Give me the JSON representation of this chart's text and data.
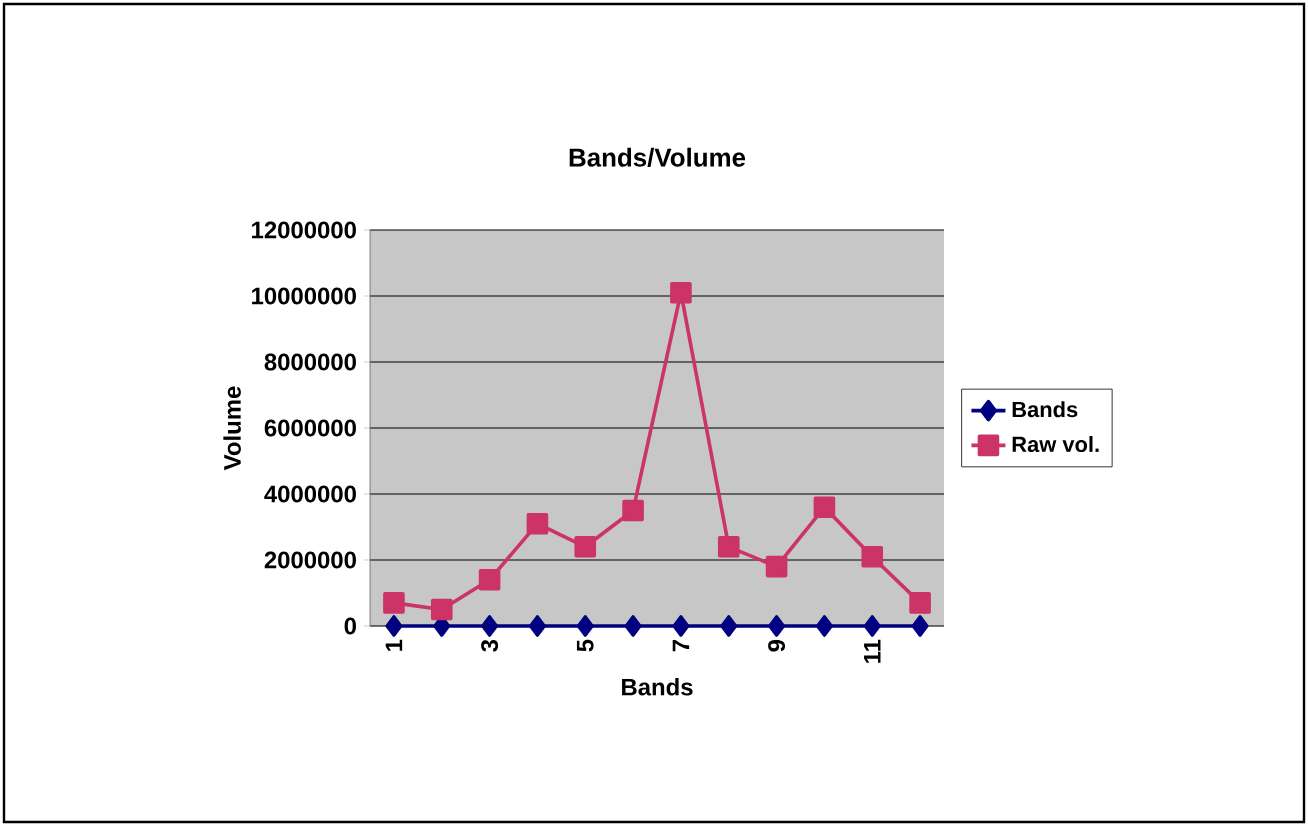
{
  "chart_data": {
    "type": "line",
    "title": "Bands/Volume",
    "xlabel": "Bands",
    "ylabel": "Volume",
    "categories": [
      "1",
      null,
      "3",
      null,
      "5",
      null,
      "7",
      null,
      "9",
      null,
      "11",
      null
    ],
    "series": [
      {
        "name": "Bands",
        "color": "#000080",
        "marker": "diamond",
        "values": [
          0,
          0,
          0,
          0,
          0,
          0,
          0,
          0,
          0,
          0,
          0,
          0
        ]
      },
      {
        "name": "Raw vol.",
        "color": "#cc3366",
        "marker": "square",
        "values": [
          700000,
          500000,
          1400000,
          3100000,
          2400000,
          3500000,
          10100000,
          2400000,
          1800000,
          3600000,
          2100000,
          700000
        ]
      }
    ],
    "ylim": [
      0,
      12000000
    ],
    "yticks": [
      0,
      2000000,
      4000000,
      6000000,
      8000000,
      10000000,
      12000000
    ],
    "grid": "y",
    "legend": "right"
  }
}
